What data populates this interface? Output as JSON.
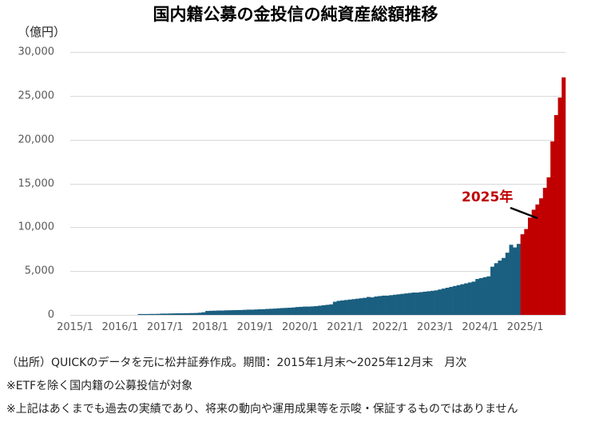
{
  "title": "国内籍公募の金投信の純資産総額推移",
  "unit_label": "（億円）",
  "annotation": {
    "label": "2025年"
  },
  "colors": {
    "history": "#1a5f80",
    "highlight": "#c00000",
    "grid": "#d9d9d9"
  },
  "notes": [
    "（出所）QUICKのデータを元に松井証券作成。期間：2015年1月末～2025年12月末　月次",
    "※ETFを除く国内籍の公募投信が対象",
    "※上記はあくまでも過去の実績であり、将来の動向や運用成果等を示唆・保証するものではありません"
  ],
  "chart_data": {
    "type": "bar",
    "title": "国内籍公募の金投信の純資産総額推移",
    "xlabel": "",
    "ylabel": "（億円）",
    "ylim": [
      0,
      30000
    ],
    "yticks": [
      0,
      5000,
      10000,
      15000,
      20000,
      25000,
      30000
    ],
    "ytick_labels": [
      "0",
      "5,000",
      "10,000",
      "15,000",
      "20,000",
      "25,000",
      "30,000"
    ],
    "xtick_labels": [
      "2015/1",
      "2016/1",
      "2017/1",
      "2018/1",
      "2019/1",
      "2020/1",
      "2021/1",
      "2022/1",
      "2023/1",
      "2024/1",
      "2025/1"
    ],
    "grid": true,
    "legend": null,
    "highlight_from": "2025/1",
    "series": [
      {
        "name": "純資産総額",
        "start": "2015/1",
        "frequency": "monthly",
        "values": [
          0,
          0,
          0,
          0,
          0,
          0,
          0,
          0,
          0,
          0,
          0,
          0,
          0,
          0,
          0,
          0,
          0,
          0,
          100,
          100,
          100,
          110,
          110,
          120,
          150,
          150,
          160,
          170,
          180,
          180,
          190,
          200,
          210,
          220,
          250,
          300,
          450,
          470,
          480,
          500,
          500,
          520,
          530,
          540,
          550,
          560,
          580,
          600,
          600,
          620,
          640,
          650,
          680,
          700,
          720,
          750,
          780,
          800,
          820,
          850,
          900,
          920,
          950,
          950,
          970,
          1000,
          1050,
          1100,
          1150,
          1200,
          1500,
          1600,
          1650,
          1700,
          1750,
          1800,
          1850,
          1900,
          1950,
          2050,
          2000,
          2100,
          2150,
          2200,
          2200,
          2250,
          2300,
          2350,
          2400,
          2450,
          2500,
          2550,
          2550,
          2600,
          2650,
          2700,
          2750,
          2800,
          2900,
          3000,
          3100,
          3200,
          3300,
          3400,
          3500,
          3600,
          3700,
          3800,
          4100,
          4200,
          4300,
          4400,
          5500,
          5900,
          6200,
          6500,
          7100,
          8000,
          7700,
          8100,
          9200,
          9800,
          11100,
          12000,
          12600,
          13300,
          14500,
          15700,
          19800,
          22800,
          24800,
          27100
        ]
      }
    ]
  }
}
